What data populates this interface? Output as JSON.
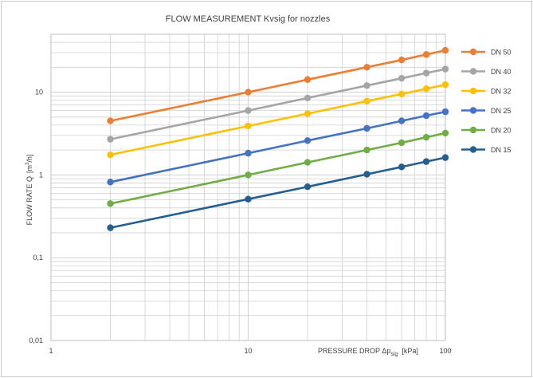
{
  "chart_data": {
    "type": "line",
    "title": "FLOW MEASUREMENT Kvsig for nozzles",
    "xlabel": {
      "main": "PRESSURE DROP Δp",
      "sub": "sig",
      "unit": "[kPa]"
    },
    "ylabel": {
      "main": "FLOW RATE Q",
      "unit_pre": "[m",
      "unit_sup": "3",
      "unit_post": "/h]"
    },
    "x_scale": "log",
    "y_scale": "log",
    "xlim": [
      1,
      100
    ],
    "ylim": [
      0.01,
      50
    ],
    "x_ticks": [
      {
        "value": 1,
        "label": "1"
      },
      {
        "value": 10,
        "label": "10"
      },
      {
        "value": 100,
        "label": "100"
      }
    ],
    "y_ticks": [
      {
        "value": 0.01,
        "label": "0,01"
      },
      {
        "value": 0.1,
        "label": "0,1"
      },
      {
        "value": 1,
        "label": "1"
      },
      {
        "value": 10,
        "label": "10"
      }
    ],
    "grid": true,
    "legend_position": "right",
    "x": [
      2,
      10,
      20,
      40,
      60,
      80,
      100
    ],
    "series": [
      {
        "name": "DN 50",
        "color": "#ed7d31",
        "values": [
          4.5,
          10.0,
          14.2,
          20.0,
          24.5,
          28.5,
          32.0
        ]
      },
      {
        "name": "DN 40",
        "color": "#a5a5a5",
        "values": [
          2.7,
          6.0,
          8.5,
          12.0,
          14.7,
          17.0,
          19.0
        ]
      },
      {
        "name": "DN 32",
        "color": "#ffc000",
        "values": [
          1.75,
          3.9,
          5.5,
          7.8,
          9.5,
          11.0,
          12.3
        ]
      },
      {
        "name": "DN 25",
        "color": "#4472c4",
        "values": [
          0.82,
          1.83,
          2.6,
          3.65,
          4.5,
          5.2,
          5.8
        ]
      },
      {
        "name": "DN 20",
        "color": "#70ad47",
        "values": [
          0.45,
          1.0,
          1.42,
          2.0,
          2.45,
          2.85,
          3.2
        ]
      },
      {
        "name": "DN 15",
        "color": "#255e91",
        "values": [
          0.23,
          0.51,
          0.72,
          1.02,
          1.25,
          1.45,
          1.62
        ]
      }
    ]
  }
}
